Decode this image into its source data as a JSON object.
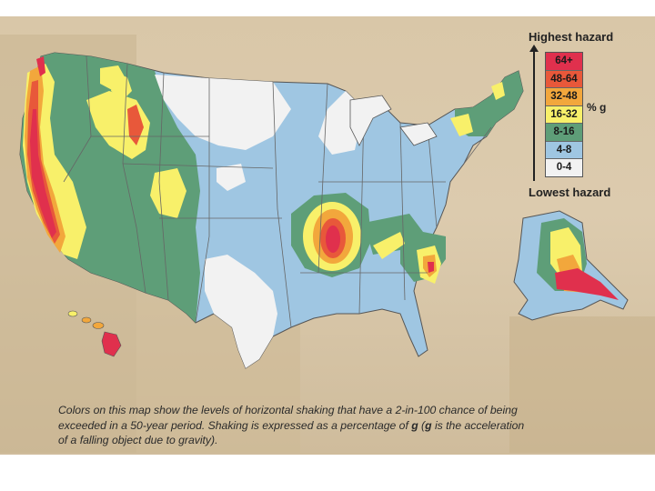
{
  "legend": {
    "top_label": "Highest hazard",
    "bottom_label": "Lowest hazard",
    "unit": "% g",
    "classes": [
      {
        "label": "64+",
        "color": "#e0304d"
      },
      {
        "label": "48-64",
        "color": "#e8583a"
      },
      {
        "label": "32-48",
        "color": "#f2a73c"
      },
      {
        "label": "16-32",
        "color": "#f8f06a"
      },
      {
        "label": "8-16",
        "color": "#5e9e78"
      },
      {
        "label": "4-8",
        "color": "#9fc6e2"
      },
      {
        "label": "0-4",
        "color": "#f2f2f2"
      }
    ]
  },
  "caption": {
    "line1_a": "Colors on this map show the levels of horizontal shaking that have a 2-in-100 chance of being",
    "line2_a": "exceeded in a 50-year period.  Shaking is expressed as a percentage of ",
    "line2_g1": "g",
    "line2_b": " (",
    "line2_g2": "g",
    "line2_c": " is the acceleration",
    "line3": "of a falling object due to gravity)."
  },
  "map": {
    "regions": [
      "contiguous-us",
      "alaska",
      "hawaii"
    ],
    "colors": {
      "state_border": "#666666",
      "outline": "#555555"
    }
  }
}
